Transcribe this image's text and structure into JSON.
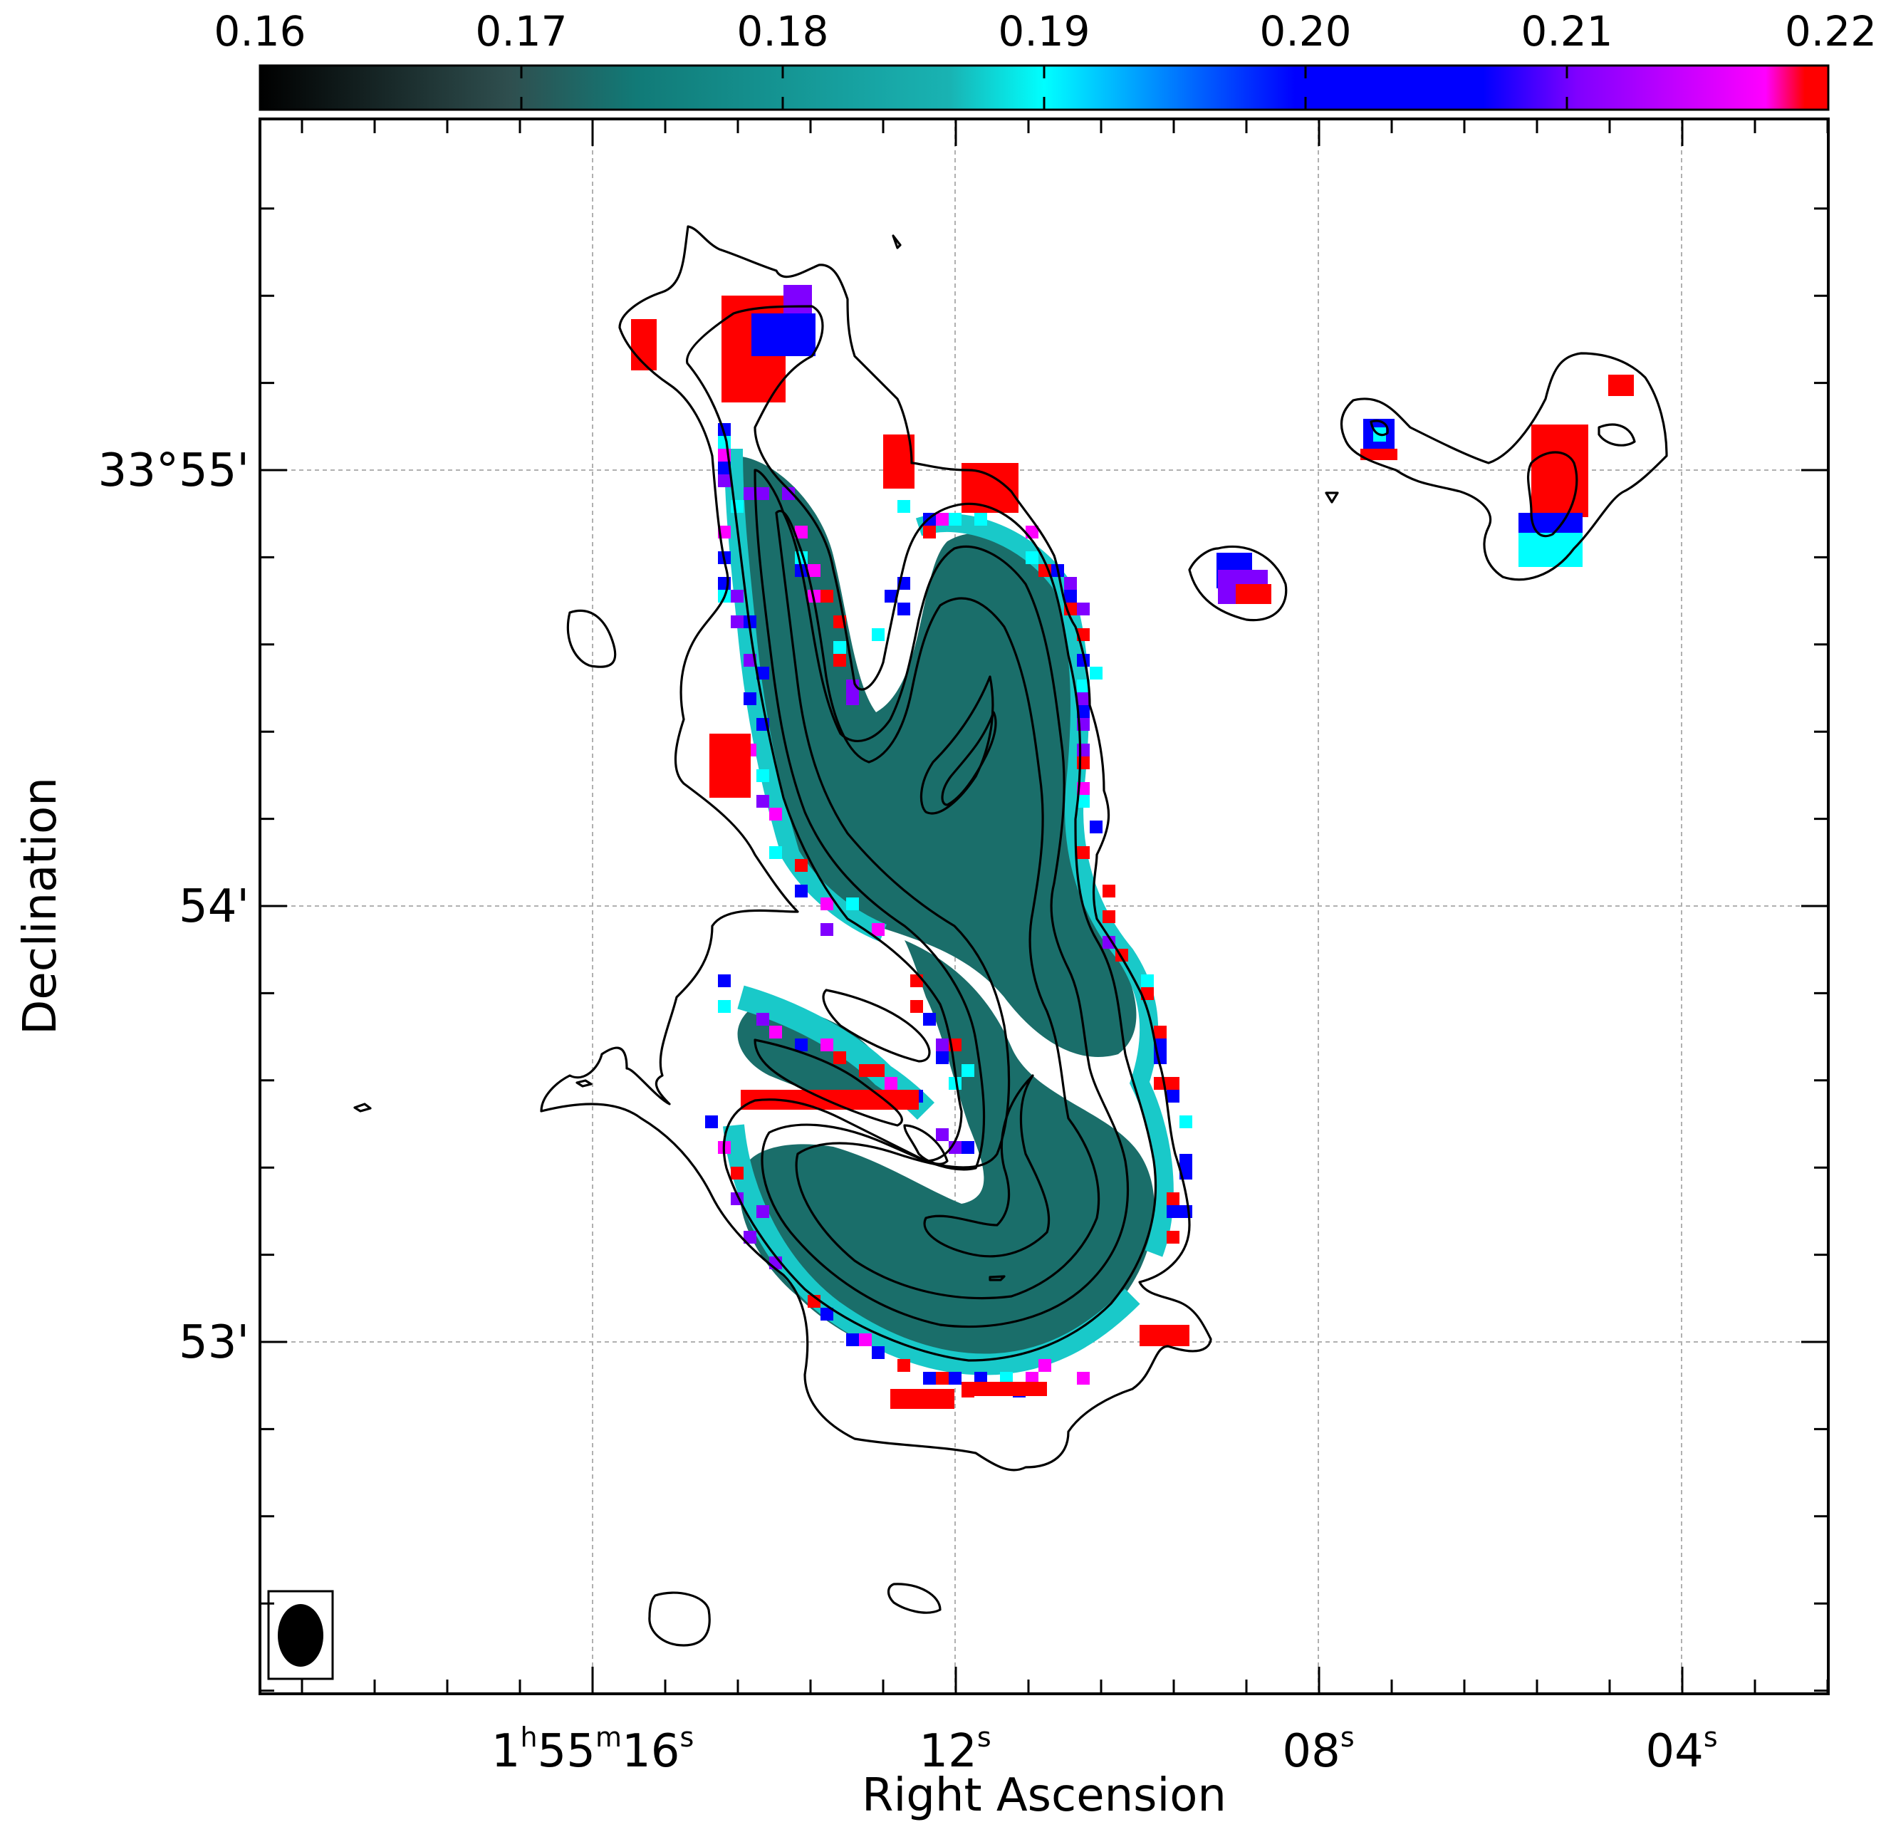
{
  "chart_data": {
    "type": "heatmap",
    "xlabel": "Right Ascension",
    "ylabel": "Declination",
    "x_ticks": [
      {
        "label": "1h55m16s",
        "parts": [
          "1",
          "h",
          "55",
          "m",
          "16",
          "s"
        ]
      },
      {
        "label": "12s",
        "parts": [
          "12",
          "s"
        ]
      },
      {
        "label": "08s",
        "parts": [
          "08",
          "s"
        ]
      },
      {
        "label": "04s",
        "parts": [
          "04",
          "s"
        ]
      }
    ],
    "y_ticks": [
      "33°55'",
      "54'",
      "53'"
    ],
    "x_range_s": [
      17.3,
      2.7
    ],
    "y_range_arcmin": [
      -2.6,
      1.7
    ],
    "grid": true,
    "colorbar": {
      "position": "top",
      "range": [
        0.16,
        0.22
      ],
      "tick_labels": [
        "0.16",
        "0.17",
        "0.18",
        "0.19",
        "0.20",
        "0.21",
        "0.22"
      ],
      "colormap": [
        "#000000",
        "#2f4f4f",
        "#117a77",
        "#19b3b3",
        "#00ffff",
        "#0000ff",
        "#8000ff",
        "#ff00ff",
        "#ff0000"
      ]
    },
    "map_colors": {
      "low": "#1a6e6a",
      "mid": "#00ffff",
      "blue": "#0000ff",
      "purple": "#8000ff",
      "magenta": "#ff00ff",
      "high": "#ff0000"
    },
    "beam": "ellipse (lower-left)"
  }
}
